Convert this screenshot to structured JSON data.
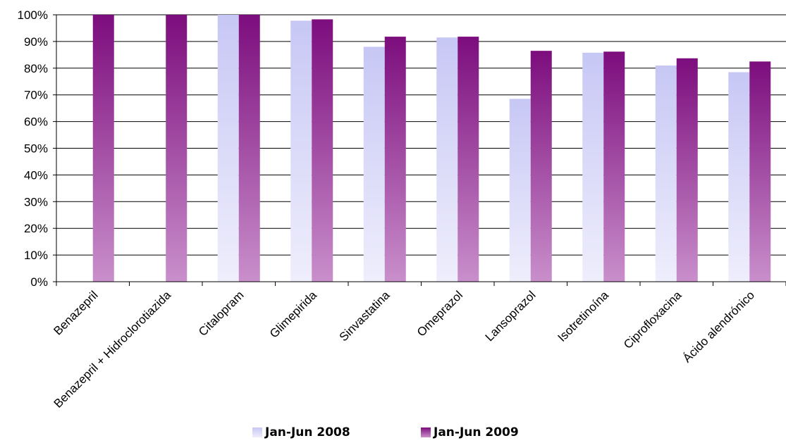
{
  "chart_data": {
    "type": "bar",
    "categories": [
      "Benazepril",
      "Benazepril + Hidroclorotiazida",
      "Citalopram",
      "Glimepirida",
      "Sinvastatina",
      "Omeprazol",
      "Lansoprazol",
      "Isotretinoína",
      "Ciprofloxacina",
      "Ácido alendrónico"
    ],
    "series": [
      {
        "name": "Jan-Jun 2008",
        "values": [
          null,
          null,
          100,
          97.8,
          88,
          91.5,
          68.5,
          85.8,
          81,
          78.5
        ],
        "color_top": "#c7c7f5",
        "color_bottom": "#efeefc"
      },
      {
        "name": "Jan-Jun 2009",
        "values": [
          100,
          100,
          100,
          98.3,
          91.8,
          91.8,
          86.5,
          86.2,
          83.7,
          82.5
        ],
        "color_top": "#7c0d7d",
        "color_bottom": "#c98fcb"
      }
    ],
    "ylim": [
      0,
      100
    ],
    "yticks": [
      "0%",
      "10%",
      "20%",
      "30%",
      "40%",
      "50%",
      "60%",
      "70%",
      "80%",
      "90%",
      "100%"
    ],
    "grid": true,
    "legend_position": "bottom",
    "title": "",
    "xlabel": "",
    "ylabel": ""
  }
}
